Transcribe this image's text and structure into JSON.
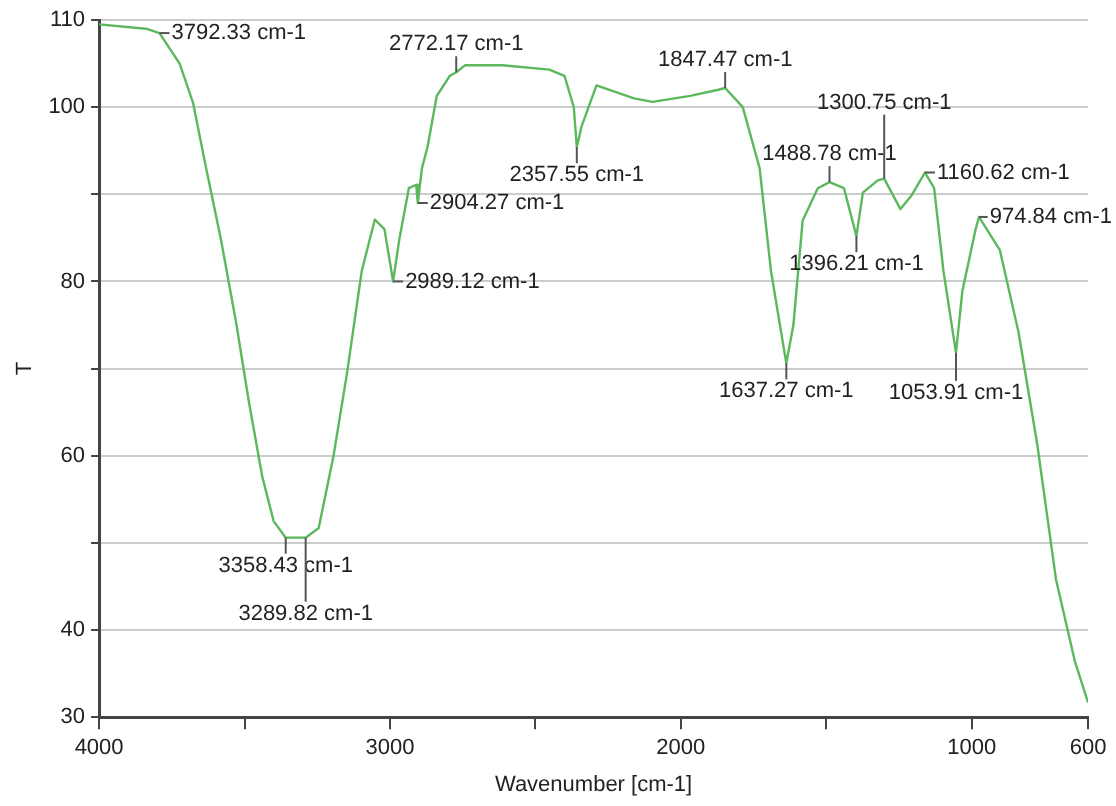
{
  "chart_data": {
    "type": "line",
    "xlabel": "Wavenumber [cm-1]",
    "ylabel": "T",
    "grid": "y",
    "marker": "none",
    "line_style": "solid",
    "xlim": [
      4000,
      600
    ],
    "xticks": [
      4000,
      {
        "value": 3500,
        "label": null
      },
      3000,
      {
        "value": 2500,
        "label": null
      },
      2000,
      {
        "value": 1500,
        "label": null
      },
      1000,
      600
    ],
    "ylim": [
      30,
      110
    ],
    "yticks": [
      30,
      40,
      {
        "value": 50,
        "label": null
      },
      60,
      {
        "value": 70,
        "label": null
      },
      80,
      {
        "value": 90,
        "label": null
      },
      100,
      110
    ],
    "x": [
      4000,
      3839,
      3792.33,
      3723,
      3677,
      3632,
      3581,
      3529,
      3484,
      3439,
      3400,
      3358.43,
      3289.82,
      3245,
      3194,
      3148,
      3097,
      3052,
      3019,
      2989.12,
      2968,
      2935,
      2910,
      2904.27,
      2890,
      2871,
      2839,
      2794,
      2772.17,
      2742,
      2613,
      2452,
      2400,
      2368,
      2357.55,
      2342,
      2290,
      2161,
      2097,
      1968,
      1871,
      1847.47,
      1787,
      1729,
      1690,
      1637.27,
      1613,
      1581,
      1529,
      1488.78,
      1439,
      1396.21,
      1374,
      1323,
      1300.75,
      1245,
      1206,
      1160.62,
      1129,
      1097,
      1053.91,
      1032,
      987,
      974.84,
      903,
      839,
      774,
      710,
      645,
      600
    ],
    "series": [
      {
        "color": "#5cb85c",
        "values": [
          109.5,
          109,
          108.5,
          105,
          100.5,
          93,
          84.8,
          75.3,
          66,
          57.6,
          52.5,
          50.6,
          50.6,
          51.7,
          60,
          69.4,
          81.2,
          87.1,
          86,
          80,
          84.8,
          90.7,
          91.1,
          89,
          93,
          95.4,
          101.3,
          103.6,
          104,
          104.8,
          104.8,
          104.3,
          103.6,
          100,
          95.4,
          97.7,
          102.5,
          101,
          100.6,
          101.3,
          102,
          102.2,
          100,
          93,
          81.2,
          70.6,
          75,
          87,
          90.7,
          91.4,
          90.7,
          85.2,
          90.2,
          91.6,
          91.8,
          88.3,
          89.9,
          92.5,
          90.7,
          81.2,
          71.8,
          78.9,
          85.9,
          87.4,
          83.6,
          74.2,
          61.2,
          45.8,
          36.4,
          31.7
        ]
      }
    ],
    "annotations": [
      {
        "text": "3792.33 cm-1",
        "x": 3792.33,
        "y": 108.5
      },
      {
        "text": "3358.43 cm-1",
        "x": 3358.43,
        "y": 50.6
      },
      {
        "text": "3289.82 cm-1",
        "x": 3289.82,
        "y": 50.6
      },
      {
        "text": "2989.12 cm-1",
        "x": 2989.12,
        "y": 80
      },
      {
        "text": "2904.27 cm-1",
        "x": 2904.27,
        "y": 89
      },
      {
        "text": "2772.17 cm-1",
        "x": 2772.17,
        "y": 104
      },
      {
        "text": "2357.55 cm-1",
        "x": 2357.55,
        "y": 95.4
      },
      {
        "text": "1847.47 cm-1",
        "x": 1847.47,
        "y": 102.2
      },
      {
        "text": "1637.27 cm-1",
        "x": 1637.27,
        "y": 70.6
      },
      {
        "text": "1488.78 cm-1",
        "x": 1488.78,
        "y": 91.4
      },
      {
        "text": "1396.21 cm-1",
        "x": 1396.21,
        "y": 85.2
      },
      {
        "text": "1300.75 cm-1",
        "x": 1300.75,
        "y": 91.8
      },
      {
        "text": "1160.62 cm-1",
        "x": 1160.62,
        "y": 92.5
      },
      {
        "text": "1053.91 cm-1",
        "x": 1053.91,
        "y": 71.8
      },
      {
        "text": "974.84 cm-1",
        "x": 974.84,
        "y": 87.4
      }
    ]
  }
}
